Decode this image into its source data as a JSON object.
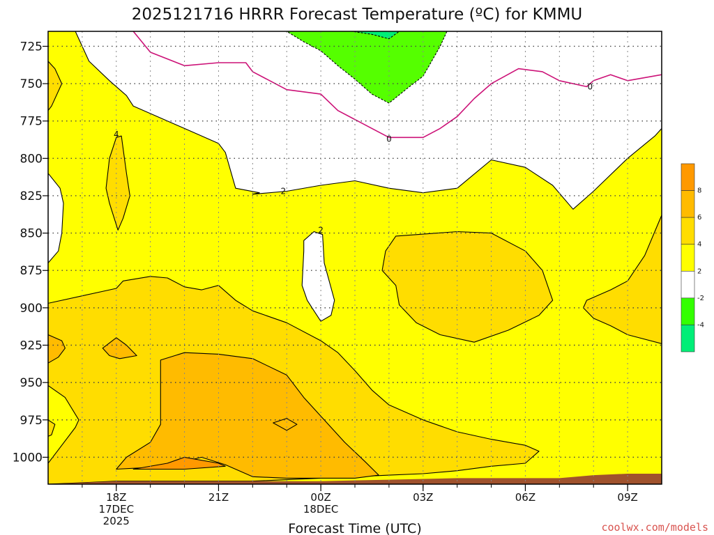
{
  "title": "2025121716 HRRR Forecast Temperature (ºC) for KMMU",
  "credit": "coolwx.com/models",
  "chart_data": {
    "type": "contour",
    "title": "2025121716 HRRR Forecast Temperature (ºC) for KMMU",
    "xlabel": "Forecast Time (UTC)",
    "ylabel": "",
    "x_unit": "hours since 2025-12-17 16Z",
    "xlim": [
      0,
      18
    ],
    "ylim": [
      715,
      1018
    ],
    "y_inverted": true,
    "grid": true,
    "y_ticks": [
      725,
      750,
      775,
      800,
      825,
      850,
      875,
      900,
      925,
      950,
      975,
      1000
    ],
    "x_ticks": [
      {
        "x": 2,
        "lines": [
          "18Z",
          "17DEC",
          "2025"
        ]
      },
      {
        "x": 5,
        "lines": [
          "21Z"
        ]
      },
      {
        "x": 8,
        "lines": [
          "00Z",
          "18DEC"
        ]
      },
      {
        "x": 11,
        "lines": [
          "03Z"
        ]
      },
      {
        "x": 14,
        "lines": [
          "06Z"
        ]
      },
      {
        "x": 17,
        "lines": [
          "09Z"
        ]
      }
    ],
    "colorbar": {
      "levels": [
        -6,
        -4,
        -2,
        2,
        4,
        6,
        8,
        10
      ],
      "colors": [
        "#00ee77",
        "#33ff00",
        "#ffffff",
        "#ffff00",
        "#ffdd00",
        "#ffbb00",
        "#ff9900"
      ],
      "labels": [
        "-4",
        "-2",
        "2",
        "4",
        "6",
        "8"
      ]
    },
    "regions": [
      {
        "name": "band-2-4",
        "color": "#ffff00",
        "points": [
          [
            0,
            715
          ],
          [
            18,
            715
          ],
          [
            18,
            1018
          ],
          [
            0,
            1018
          ]
        ]
      },
      {
        "name": "white-upper",
        "color": "#ffffff",
        "points": [
          [
            0.8,
            715
          ],
          [
            18,
            715
          ],
          [
            18,
            780
          ],
          [
            17.8,
            785
          ],
          [
            17,
            800
          ],
          [
            16,
            822
          ],
          [
            15.4,
            834
          ],
          [
            14.8,
            818
          ],
          [
            14,
            806
          ],
          [
            13,
            801
          ],
          [
            12,
            820
          ],
          [
            11,
            823
          ],
          [
            10,
            820
          ],
          [
            9,
            815
          ],
          [
            8,
            818
          ],
          [
            7,
            822
          ],
          [
            6,
            824
          ],
          [
            6.2,
            823
          ],
          [
            5.5,
            820
          ],
          [
            5.2,
            796
          ],
          [
            5,
            790
          ],
          [
            4,
            780
          ],
          [
            3.8,
            778
          ],
          [
            3,
            770
          ],
          [
            2.5,
            765
          ],
          [
            2.3,
            758
          ],
          [
            1.8,
            748
          ],
          [
            1.2,
            735
          ],
          [
            1,
            725
          ]
        ]
      },
      {
        "name": "white-left",
        "color": "#ffffff",
        "points": [
          [
            0,
            810
          ],
          [
            0.35,
            820
          ],
          [
            0.45,
            830
          ],
          [
            0.4,
            850
          ],
          [
            0.3,
            862
          ],
          [
            0,
            870
          ]
        ]
      },
      {
        "name": "white-mid",
        "color": "#ffffff",
        "points": [
          [
            7.5,
            855
          ],
          [
            7.8,
            849
          ],
          [
            8.05,
            851
          ],
          [
            8.1,
            870
          ],
          [
            8.4,
            895
          ],
          [
            8.3,
            905
          ],
          [
            8,
            909
          ],
          [
            7.8,
            902
          ],
          [
            7.6,
            895
          ],
          [
            7.45,
            885
          ],
          [
            7.5,
            862
          ]
        ]
      },
      {
        "name": "band-m2-m4",
        "color": "#55ff00",
        "points": [
          [
            7,
            715
          ],
          [
            11.7,
            715
          ],
          [
            11.5,
            725
          ],
          [
            11,
            745
          ],
          [
            10.6,
            752
          ],
          [
            10,
            763
          ],
          [
            9.5,
            757
          ],
          [
            9,
            747
          ],
          [
            8.5,
            738
          ],
          [
            8,
            728
          ],
          [
            7.5,
            722
          ]
        ]
      },
      {
        "name": "band-m4-m6",
        "color": "#00ee77",
        "points": [
          [
            8.9,
            715
          ],
          [
            10.3,
            715
          ],
          [
            10,
            720
          ],
          [
            9.5,
            717
          ],
          [
            9.2,
            716
          ]
        ]
      },
      {
        "name": "band-4-6-upperleft",
        "color": "#ffdd00",
        "points": [
          [
            0,
            735
          ],
          [
            0.2,
            740
          ],
          [
            0.4,
            750
          ],
          [
            0.1,
            765
          ],
          [
            0,
            768
          ]
        ]
      },
      {
        "name": "band-4-6-lens",
        "color": "#ffdd00",
        "points": [
          [
            2.0,
            786
          ],
          [
            2.15,
            785
          ],
          [
            2.3,
            810
          ],
          [
            2.4,
            825
          ],
          [
            2.2,
            840
          ],
          [
            2.05,
            848
          ],
          [
            1.8,
            830
          ],
          [
            1.7,
            820
          ],
          [
            1.8,
            800
          ]
        ]
      },
      {
        "name": "band-4-6-east",
        "color": "#ffdd00",
        "points": [
          [
            10.2,
            852
          ],
          [
            12,
            849
          ],
          [
            13,
            850
          ],
          [
            14,
            862
          ],
          [
            14.5,
            875
          ],
          [
            14.8,
            895
          ],
          [
            14.4,
            905
          ],
          [
            13.5,
            915
          ],
          [
            12.5,
            923
          ],
          [
            11.5,
            918
          ],
          [
            10.8,
            910
          ],
          [
            10.3,
            898
          ],
          [
            10.2,
            885
          ],
          [
            9.8,
            875
          ],
          [
            9.9,
            862
          ]
        ]
      },
      {
        "name": "band-4-6-right",
        "color": "#ffdd00",
        "points": [
          [
            18,
            838
          ],
          [
            17.5,
            865
          ],
          [
            17,
            882
          ],
          [
            16.5,
            888
          ],
          [
            15.8,
            895
          ],
          [
            15.7,
            900
          ],
          [
            16,
            907
          ],
          [
            16.5,
            912
          ],
          [
            17,
            918
          ],
          [
            18,
            924
          ]
        ]
      },
      {
        "name": "band-4-6-lower",
        "color": "#ffdd00",
        "points": [
          [
            0,
            897
          ],
          [
            1,
            892
          ],
          [
            2,
            887
          ],
          [
            2.2,
            882
          ],
          [
            3,
            879
          ],
          [
            3.5,
            880
          ],
          [
            4,
            886
          ],
          [
            4.5,
            888
          ],
          [
            5,
            885
          ],
          [
            5.5,
            895
          ],
          [
            6,
            902
          ],
          [
            7,
            910
          ],
          [
            8,
            922
          ],
          [
            8.5,
            930
          ],
          [
            9,
            942
          ],
          [
            9.5,
            955
          ],
          [
            10,
            965
          ],
          [
            11,
            975
          ],
          [
            12,
            983
          ],
          [
            13,
            988
          ],
          [
            14,
            992
          ],
          [
            14.4,
            996
          ],
          [
            14,
            1004
          ],
          [
            13,
            1006
          ],
          [
            12,
            1009
          ],
          [
            11,
            1011
          ],
          [
            10,
            1012
          ],
          [
            9,
            1013
          ],
          [
            8,
            1014
          ],
          [
            7,
            1015
          ],
          [
            6,
            1016
          ],
          [
            4,
            1016
          ],
          [
            2,
            1016
          ],
          [
            1,
            1017
          ],
          [
            0,
            1018
          ],
          [
            0,
            1004
          ],
          [
            0.3,
            995
          ],
          [
            0.8,
            980
          ],
          [
            0.9,
            975
          ],
          [
            0.5,
            960
          ],
          [
            0,
            952
          ],
          [
            0,
            975
          ],
          [
            0.2,
            978
          ],
          [
            0.1,
            985
          ],
          [
            0,
            986
          ]
        ]
      },
      {
        "name": "band-6-8-left",
        "color": "#ffbb00",
        "points": [
          [
            0,
            918
          ],
          [
            0.4,
            922
          ],
          [
            0.5,
            927
          ],
          [
            0.3,
            933
          ],
          [
            0,
            937
          ]
        ]
      },
      {
        "name": "band-6-8-dot",
        "color": "#ffbb00",
        "points": [
          [
            1.6,
            927
          ],
          [
            2.0,
            920
          ],
          [
            2.3,
            925
          ],
          [
            2.6,
            932
          ],
          [
            2.1,
            934
          ],
          [
            1.8,
            932
          ]
        ]
      },
      {
        "name": "band-6-8-main",
        "color": "#ffbb00",
        "points": [
          [
            3.3,
            935
          ],
          [
            4,
            930
          ],
          [
            5,
            931
          ],
          [
            6,
            934
          ],
          [
            7,
            945
          ],
          [
            7.5,
            960
          ],
          [
            8.1,
            975
          ],
          [
            8.7,
            990
          ],
          [
            9.3,
            1003
          ],
          [
            9.7,
            1012
          ],
          [
            9,
            1014
          ],
          [
            8,
            1014
          ],
          [
            7,
            1014
          ],
          [
            6,
            1013
          ],
          [
            5.2,
            1005
          ],
          [
            4.5,
            1000
          ],
          [
            3.6,
            1005
          ],
          [
            2.8,
            1007
          ],
          [
            2,
            1008
          ],
          [
            2.3,
            1000
          ],
          [
            3,
            990
          ],
          [
            3.3,
            978
          ],
          [
            3.3,
            962
          ],
          [
            3.3,
            950
          ]
        ]
      },
      {
        "name": "band-8-10",
        "color": "#ff9900",
        "points": [
          [
            2.5,
            1008
          ],
          [
            3.5,
            1004
          ],
          [
            4,
            1000
          ],
          [
            5,
            1004
          ],
          [
            5.2,
            1006
          ],
          [
            4,
            1008
          ]
        ]
      },
      {
        "name": "band-6-8-island",
        "color": "#ffbb00",
        "points": [
          [
            6.6,
            977
          ],
          [
            7,
            974
          ],
          [
            7.3,
            978
          ],
          [
            7,
            982
          ]
        ]
      }
    ],
    "freezing_lines": [
      [
        [
          2.5,
          715
        ],
        [
          3,
          729
        ],
        [
          4,
          738
        ],
        [
          5,
          736
        ],
        [
          5.8,
          736
        ],
        [
          6,
          742
        ],
        [
          7,
          754
        ],
        [
          8,
          757
        ],
        [
          8.5,
          768
        ],
        [
          9.5,
          780
        ],
        [
          10,
          786
        ],
        [
          11,
          786
        ],
        [
          11.5,
          780
        ],
        [
          12,
          772
        ],
        [
          12.5,
          760
        ],
        [
          13,
          750
        ],
        [
          13.8,
          740
        ],
        [
          14.5,
          742
        ],
        [
          15,
          748
        ],
        [
          15.8,
          752
        ],
        [
          16,
          748
        ],
        [
          16.5,
          744
        ],
        [
          17,
          748
        ],
        [
          18,
          744
        ]
      ]
    ],
    "contour_labels": [
      {
        "x": 10,
        "p": 787,
        "text": "0"
      },
      {
        "x": 15.9,
        "p": 752,
        "text": "0"
      },
      {
        "x": 2,
        "p": 784,
        "text": "4"
      },
      {
        "x": 6.9,
        "p": 822,
        "text": "2"
      },
      {
        "x": 8,
        "p": 848,
        "text": "2"
      }
    ],
    "ground_line": [
      [
        0,
        1018
      ],
      [
        1,
        1017
      ],
      [
        2,
        1016
      ],
      [
        4,
        1016
      ],
      [
        6,
        1016
      ],
      [
        8,
        1016
      ],
      [
        10,
        1015
      ],
      [
        12,
        1014
      ],
      [
        14,
        1014
      ],
      [
        15,
        1014
      ],
      [
        16,
        1012
      ],
      [
        17,
        1011
      ],
      [
        18,
        1011
      ]
    ]
  }
}
